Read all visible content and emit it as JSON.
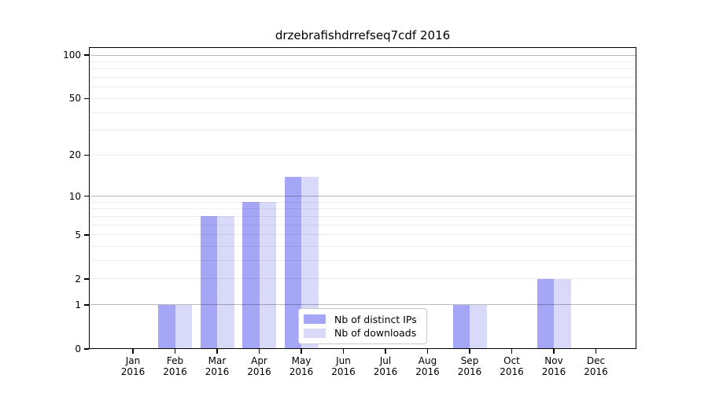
{
  "page": {
    "background": "#ffffff"
  },
  "chart_data": {
    "type": "bar",
    "title": "drzebrafishdrrefseq7cdf 2016",
    "categories": [
      "Jan",
      "Feb",
      "Mar",
      "Apr",
      "May",
      "Jun",
      "Jul",
      "Aug",
      "Sep",
      "Oct",
      "Nov",
      "Dec"
    ],
    "x_year_label": "2016",
    "series": [
      {
        "name": "Nb of distinct IPs",
        "color": "#a6a6f7",
        "values": [
          0,
          1,
          7,
          9,
          14,
          0,
          0,
          0,
          1,
          0,
          2,
          0
        ]
      },
      {
        "name": "Nb of downloads",
        "color": "#d9d9fa",
        "values": [
          0,
          1,
          7,
          9,
          14,
          0,
          0,
          0,
          1,
          0,
          2,
          0
        ]
      }
    ],
    "yscale": "log1p",
    "ylim": [
      0,
      100
    ],
    "y_tick_values": [
      0,
      1,
      2,
      5,
      10,
      20,
      50,
      100
    ],
    "y_tick_labels": [
      "0",
      "1",
      "2",
      "5",
      "10",
      "20",
      "50",
      "100"
    ],
    "y_major_grid": [
      1,
      10,
      100
    ],
    "y_minor_grid": [
      2,
      3,
      4,
      5,
      6,
      7,
      8,
      9,
      20,
      30,
      40,
      50,
      60,
      70,
      80,
      90
    ],
    "grid": true,
    "legend_position": "lower center"
  },
  "colors": {
    "bar_distinct_ips": "#a6a6f7",
    "bar_downloads": "#d9d9fa",
    "grid_major": "rgba(0,0,0,0.27)",
    "grid_minor": "rgba(0,0,0,0.07)",
    "axis_frame": "#000000",
    "legend_border": "#c9c9c9",
    "legend_background": "#ffffff",
    "text": "#000000"
  }
}
